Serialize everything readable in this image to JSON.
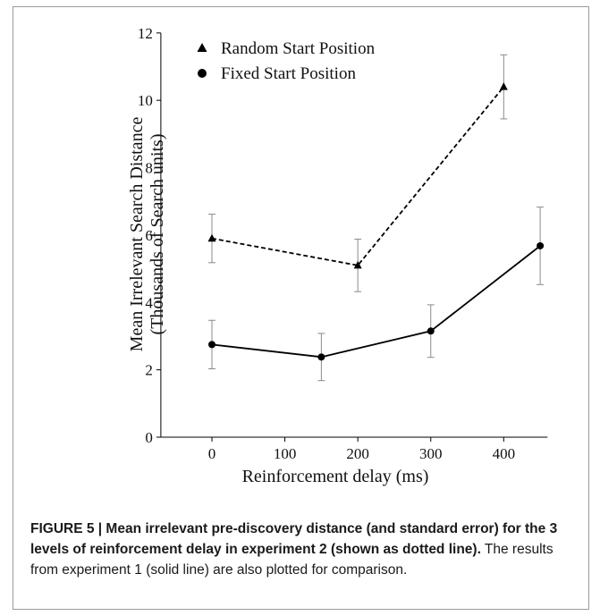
{
  "figure": {
    "caption_bold": "FIGURE 5 | Mean irrelevant pre-discovery distance (and standard error) for the 3 levels of reinforcement delay in experiment 2 (shown as dotted line).",
    "caption_rest": " The results from experiment 1 (solid line) are also plotted for comparison."
  },
  "chart_data": {
    "type": "line",
    "title": "",
    "xlabel": "Reinforcement delay (ms)",
    "ylabel_line1": "Mean Irrelevant Search Distance",
    "ylabel_line2": "(Thousands of Search units)",
    "xlim": [
      -70,
      460
    ],
    "ylim": [
      0,
      12
    ],
    "x_ticks": [
      0,
      100,
      200,
      300,
      400
    ],
    "y_ticks": [
      0,
      2,
      4,
      6,
      8,
      10,
      12
    ],
    "legend_position": "top-left",
    "series": [
      {
        "name": "Random Start Position",
        "marker": "triangle",
        "line_style": "dashed",
        "color": "#000000",
        "points": [
          {
            "x": 0,
            "y": 5.9,
            "err": 0.72
          },
          {
            "x": 200,
            "y": 5.1,
            "err": 0.78
          },
          {
            "x": 400,
            "y": 10.4,
            "err": 0.95
          }
        ]
      },
      {
        "name": "Fixed Start Position",
        "marker": "circle",
        "line_style": "solid",
        "color": "#000000",
        "points": [
          {
            "x": 0,
            "y": 2.75,
            "err": 0.72
          },
          {
            "x": 150,
            "y": 2.38,
            "err": 0.7
          },
          {
            "x": 300,
            "y": 3.15,
            "err": 0.78
          },
          {
            "x": 450,
            "y": 5.68,
            "err": 1.15
          }
        ]
      }
    ]
  }
}
